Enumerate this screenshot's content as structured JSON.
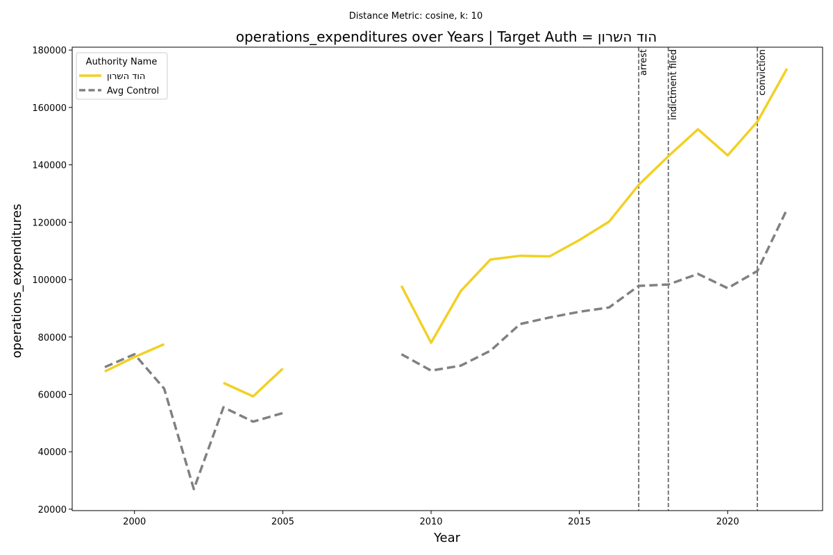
{
  "chart_data": {
    "type": "line",
    "subtitle": "Distance Metric: cosine, k: 10",
    "title": "operations_expenditures over Years | Target Auth = הוד השרון",
    "xlabel": "Year",
    "ylabel": "operations_expenditures",
    "xlim": [
      1997.9,
      2023.2
    ],
    "ylim": [
      19500,
      181000
    ],
    "xticks": [
      2000,
      2005,
      2010,
      2015,
      2020
    ],
    "yticks": [
      20000,
      40000,
      60000,
      80000,
      100000,
      120000,
      140000,
      160000,
      180000
    ],
    "legend": {
      "title": "Authority Name",
      "placement": "top-left"
    },
    "series": [
      {
        "name": "הוד השרון",
        "color": "#f2d024",
        "style": "solid",
        "x": [
          1999,
          2000,
          2001,
          2002,
          2003,
          2004,
          2005,
          2006,
          2007,
          2008,
          2009,
          2010,
          2011,
          2012,
          2013,
          2014,
          2015,
          2016,
          2017,
          2018,
          2019,
          2020,
          2021,
          2022
        ],
        "values": [
          68000,
          73000,
          77500,
          null,
          64000,
          59300,
          69000,
          null,
          null,
          null,
          97800,
          78000,
          96000,
          107000,
          108300,
          108100,
          113800,
          120200,
          133000,
          143000,
          152400,
          143300,
          155000,
          173500
        ]
      },
      {
        "name": "Avg Control",
        "color": "#808080",
        "style": "dashed",
        "x": [
          1999,
          2000,
          2001,
          2002,
          2003,
          2004,
          2005,
          2006,
          2007,
          2008,
          2009,
          2010,
          2011,
          2012,
          2013,
          2014,
          2015,
          2016,
          2017,
          2018,
          2019,
          2020,
          2021,
          2022
        ],
        "values": [
          69500,
          74000,
          62000,
          27000,
          55500,
          50500,
          53500,
          null,
          null,
          null,
          74000,
          68300,
          70000,
          75200,
          84500,
          86800,
          88800,
          90300,
          97800,
          98300,
          102000,
          97000,
          103000,
          124500
        ]
      }
    ],
    "events": [
      {
        "x": 2017,
        "label": "arrest"
      },
      {
        "x": 2018,
        "label": "indictment filed"
      },
      {
        "x": 2021,
        "label": "conviction"
      }
    ]
  }
}
